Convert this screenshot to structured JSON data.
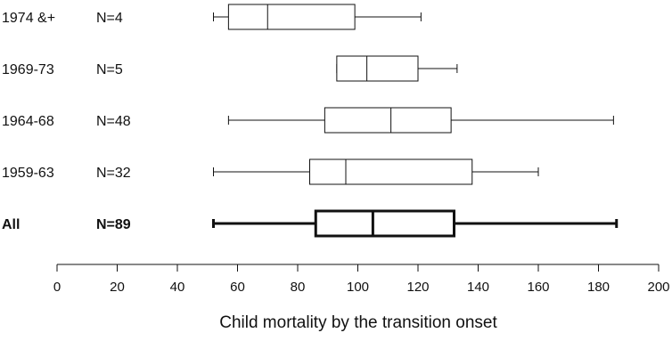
{
  "chart_data": {
    "type": "boxplot",
    "xlabel": "Child mortality by the transition onset",
    "xlim": [
      0,
      200
    ],
    "xticks": [
      "0",
      "20",
      "40",
      "60",
      "80",
      "100",
      "120",
      "140",
      "160",
      "180",
      "200"
    ],
    "grid": false,
    "series": [
      {
        "category": "1974 &+",
        "n_label": "N=4",
        "min": 52,
        "q1": 57,
        "median": 70,
        "q3": 99,
        "max": 121,
        "emphasis": false
      },
      {
        "category": "1969-73",
        "n_label": "N=5",
        "min": 93,
        "q1": 93,
        "median": 103,
        "q3": 120,
        "max": 133,
        "emphasis": false
      },
      {
        "category": "1964-68",
        "n_label": "N=48",
        "min": 57,
        "q1": 89,
        "median": 111,
        "q3": 131,
        "max": 185,
        "emphasis": false
      },
      {
        "category": "1959-63",
        "n_label": "N=32",
        "min": 52,
        "q1": 84,
        "median": 96,
        "q3": 138,
        "max": 160,
        "emphasis": false
      },
      {
        "category": "All",
        "n_label": "N=89",
        "min": 52,
        "q1": 86,
        "median": 105,
        "q3": 132,
        "max": 186,
        "emphasis": true
      }
    ],
    "colors": {
      "ink": "#111111",
      "box_fill": "#ffffff"
    }
  }
}
